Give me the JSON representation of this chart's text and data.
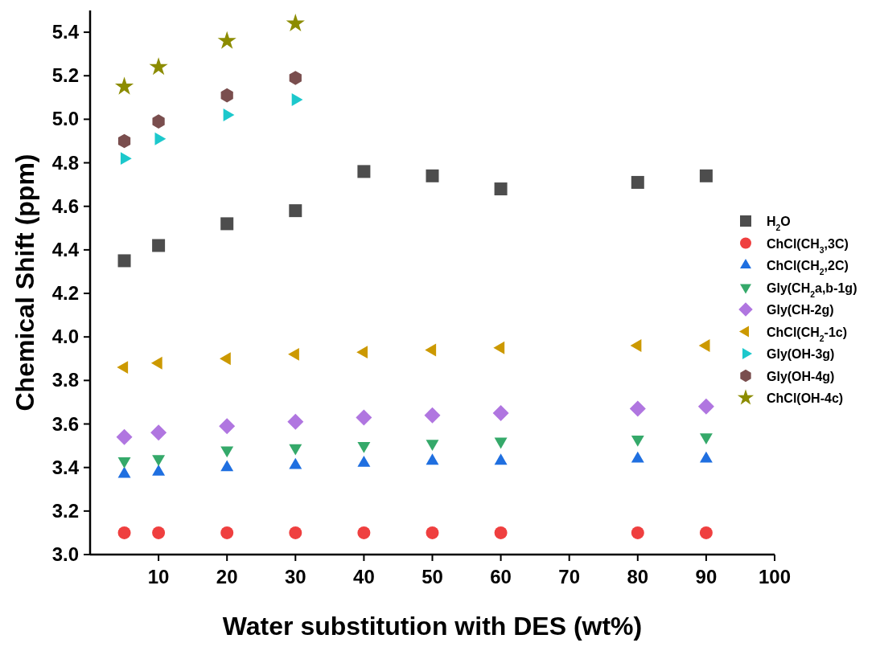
{
  "chart_data": {
    "type": "scatter",
    "xlabel": "Water substitution with DES (wt%)",
    "ylabel": "Chemical Shift (ppm)",
    "xlim": [
      0,
      100
    ],
    "xticks": [
      10,
      20,
      30,
      40,
      50,
      60,
      70,
      80,
      90,
      100
    ],
    "ylim": [
      3.0,
      5.5
    ],
    "yticks": [
      {
        "value": 3.0,
        "label": "3.0"
      },
      {
        "value": 3.2,
        "label": "3.2"
      },
      {
        "value": 3.4,
        "label": "3.4"
      },
      {
        "value": 3.6,
        "label": "3.6"
      },
      {
        "value": 3.8,
        "label": "3.8"
      },
      {
        "value": 4.0,
        "label": "4.0"
      },
      {
        "value": 4.2,
        "label": "4.2"
      },
      {
        "value": 4.4,
        "label": "4.4"
      },
      {
        "value": 4.6,
        "label": "4.6"
      },
      {
        "value": 4.8,
        "label": "4.8"
      },
      {
        "value": 5.0,
        "label": "5.0"
      },
      {
        "value": 5.2,
        "label": "5.2"
      },
      {
        "value": 5.4,
        "label": "5.4"
      }
    ],
    "grid": false,
    "legend": "right",
    "x": [
      5,
      10,
      20,
      30,
      40,
      50,
      60,
      80,
      90
    ],
    "series": [
      {
        "name": "H$_{2}$O",
        "color": "#4d4d4d",
        "marker": "square",
        "values": [
          4.35,
          4.42,
          4.52,
          4.58,
          4.76,
          4.74,
          4.68,
          4.71,
          4.74
        ]
      },
      {
        "name": "ChCl(CH$_{3}$,3C)",
        "color": "#ef3f3f",
        "marker": "circle",
        "values": [
          3.1,
          3.1,
          3.1,
          3.1,
          3.1,
          3.1,
          3.1,
          3.1,
          3.1
        ]
      },
      {
        "name": "ChCl(CH$_{2}$,2C)",
        "color": "#1f6fe0",
        "marker": "triangle",
        "values": [
          3.37,
          3.38,
          3.4,
          3.41,
          3.42,
          3.43,
          3.43,
          3.44,
          3.44
        ]
      },
      {
        "name": "Gly(CH$_{2}$a,b-1g)",
        "color": "#35a96a",
        "marker": "triangle-down",
        "values": [
          3.43,
          3.44,
          3.48,
          3.49,
          3.5,
          3.51,
          3.52,
          3.53,
          3.54
        ]
      },
      {
        "name": "Gly(CH-2g)",
        "color": "#b076e0",
        "marker": "diamond",
        "values": [
          3.54,
          3.56,
          3.59,
          3.61,
          3.63,
          3.64,
          3.65,
          3.67,
          3.68
        ]
      },
      {
        "name": "ChCl(CH$_{2}$-1c)",
        "color": "#cc9900",
        "marker": "triangle-left",
        "values": [
          3.86,
          3.88,
          3.9,
          3.92,
          3.93,
          3.94,
          3.95,
          3.96,
          3.96
        ]
      },
      {
        "name": "Gly(OH-3g)",
        "color": "#1cc8cc",
        "marker": "triangle-right",
        "x": [
          5,
          10,
          20,
          30
        ],
        "values": [
          4.82,
          4.91,
          5.02,
          5.09
        ]
      },
      {
        "name": "Gly(OH-4g)",
        "color": "#7a4e4e",
        "x": [
          5,
          10,
          20,
          30
        ],
        "values": [
          4.9,
          4.99,
          5.11,
          5.19
        ]
      },
      {
        "name": "ChCl(OH-4c)",
        "color": "#8c8c00",
        "marker": "star",
        "x": [
          5,
          10,
          20,
          30
        ],
        "values": [
          5.15,
          5.24,
          5.36,
          5.44
        ]
      }
    ]
  }
}
